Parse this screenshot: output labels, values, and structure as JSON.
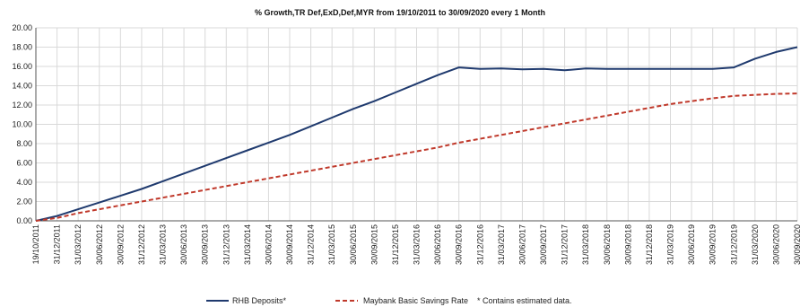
{
  "chart_data": {
    "type": "line",
    "title": "% Growth,TR Def,ExD,Def,MYR from 19/10/2011 to 30/09/2020 every 1 Month",
    "xlabel": "",
    "ylabel": "",
    "ylim": [
      0,
      20
    ],
    "y_ticks": [
      "0.00",
      "2.00",
      "4.00",
      "6.00",
      "8.00",
      "10.00",
      "12.00",
      "14.00",
      "16.00",
      "18.00",
      "20.00"
    ],
    "grid": true,
    "legend_position": "bottom",
    "x_tick_labels": [
      "19/10/2011",
      "31/12/2011",
      "31/03/2012",
      "30/06/2012",
      "30/09/2012",
      "31/12/2012",
      "31/03/2013",
      "30/06/2013",
      "30/09/2013",
      "31/12/2013",
      "31/03/2014",
      "30/06/2014",
      "30/09/2014",
      "31/12/2014",
      "31/03/2015",
      "30/06/2015",
      "30/09/2015",
      "31/12/2015",
      "31/03/2016",
      "30/06/2016",
      "30/09/2016",
      "31/12/2016",
      "31/03/2017",
      "30/06/2017",
      "30/09/2017",
      "31/12/2017",
      "31/03/2018",
      "30/06/2018",
      "30/09/2018",
      "31/12/2018",
      "31/03/2019",
      "30/06/2019",
      "30/09/2019",
      "31/12/2019",
      "31/03/2020",
      "30/06/2020",
      "30/09/2020"
    ],
    "series": [
      {
        "name": "RHB Deposits*",
        "color": "#1f3a6e",
        "style": "solid",
        "x": [
          "19/10/2011",
          "31/12/2011",
          "31/03/2012",
          "30/06/2012",
          "30/09/2012",
          "31/12/2012",
          "31/03/2013",
          "30/06/2013",
          "30/09/2013",
          "31/12/2013",
          "31/03/2014",
          "30/06/2014",
          "30/09/2014",
          "31/12/2014",
          "31/03/2015",
          "30/06/2015",
          "30/09/2015",
          "31/12/2015",
          "31/03/2016",
          "30/06/2016",
          "30/09/2016",
          "31/12/2016",
          "31/03/2017",
          "30/06/2017",
          "30/09/2017",
          "31/12/2017",
          "31/03/2018",
          "30/06/2018",
          "30/09/2018",
          "31/12/2018",
          "31/03/2019",
          "30/06/2019",
          "30/09/2019",
          "31/12/2019",
          "31/03/2020",
          "30/06/2020",
          "30/09/2020"
        ],
        "values": [
          0.0,
          0.5,
          1.2,
          1.9,
          2.6,
          3.3,
          4.1,
          4.9,
          5.7,
          6.5,
          7.3,
          8.1,
          8.9,
          9.8,
          10.7,
          11.6,
          12.4,
          13.3,
          14.2,
          15.1,
          15.9,
          15.75,
          15.8,
          15.7,
          15.75,
          15.6,
          15.8,
          15.75,
          15.75,
          15.75,
          15.75,
          15.75,
          15.75,
          15.9,
          16.8,
          17.5,
          18.0
        ]
      },
      {
        "name": "Maybank Basic Savings Rate",
        "color": "#c0392b",
        "style": "dashed",
        "x": [
          "19/10/2011",
          "31/12/2011",
          "31/03/2012",
          "30/06/2012",
          "30/09/2012",
          "31/12/2012",
          "31/03/2013",
          "30/06/2013",
          "30/09/2013",
          "31/12/2013",
          "31/03/2014",
          "30/06/2014",
          "30/09/2014",
          "31/12/2014",
          "31/03/2015",
          "30/06/2015",
          "30/09/2015",
          "31/12/2015",
          "31/03/2016",
          "30/06/2016",
          "30/09/2016",
          "31/12/2016",
          "31/03/2017",
          "30/06/2017",
          "30/09/2017",
          "31/12/2017",
          "31/03/2018",
          "30/06/2018",
          "30/09/2018",
          "31/12/2018",
          "31/03/2019",
          "30/06/2019",
          "30/09/2019",
          "31/12/2019",
          "31/03/2020",
          "30/06/2020",
          "30/09/2020"
        ],
        "values": [
          0.0,
          0.3,
          0.8,
          1.2,
          1.6,
          2.0,
          2.4,
          2.8,
          3.2,
          3.6,
          4.0,
          4.4,
          4.8,
          5.2,
          5.6,
          6.0,
          6.4,
          6.8,
          7.2,
          7.6,
          8.1,
          8.5,
          8.9,
          9.3,
          9.7,
          10.1,
          10.5,
          10.9,
          11.3,
          11.7,
          12.1,
          12.4,
          12.7,
          12.95,
          13.05,
          13.15,
          13.2
        ]
      }
    ],
    "legend": [
      {
        "label": "RHB Deposits*",
        "color": "#1f3a6e",
        "style": "solid"
      },
      {
        "label": "Maybank Basic Savings Rate",
        "color": "#c0392b",
        "style": "dashed"
      }
    ],
    "footnote": "*  Contains estimated data."
  }
}
